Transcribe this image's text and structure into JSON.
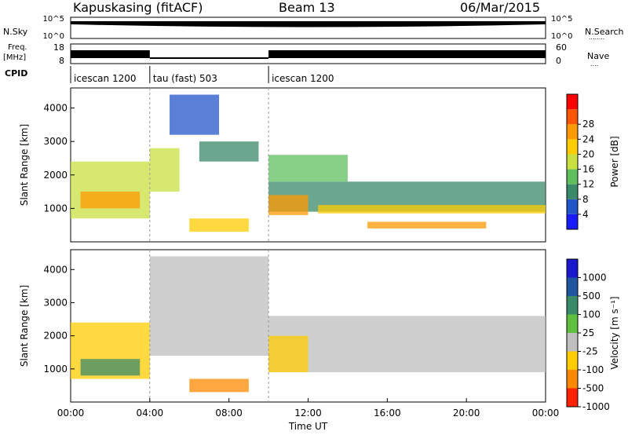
{
  "header": {
    "station": "Kapuskasing (fitACF)",
    "beam": "Beam 13",
    "date": "06/Mar/2015"
  },
  "strip_labels": {
    "nsky": "N.Sky",
    "nsky_ticks": [
      "10^5",
      "10^0"
    ],
    "nsearch": "N.Search",
    "freq": "Freq.",
    "freq_unit": "[MHz]",
    "freq_ticks": [
      "18",
      "8"
    ],
    "nave": "Nave",
    "nave_ticks": [
      "60",
      "0"
    ],
    "cpid": "CPID",
    "dots": "........"
  },
  "cpid_segments": [
    {
      "label": "icescan 1200",
      "start": 0,
      "end": 4
    },
    {
      "label": "tau (fast) 503",
      "start": 4,
      "end": 10
    },
    {
      "label": "icescan 1200",
      "start": 10,
      "end": 24
    }
  ],
  "panels": {
    "ylabel": "Slant Range [km]",
    "yticks": [
      "1000",
      "2000",
      "3000",
      "4000"
    ],
    "xticks": [
      "00:00",
      "04:00",
      "08:00",
      "12:00",
      "16:00",
      "20:00",
      "00:00"
    ],
    "xlabel": "Time UT"
  },
  "power_scale": {
    "label": "Power [dB]",
    "ticks": [
      "4",
      "8",
      "12",
      "16",
      "20",
      "24",
      "28"
    ],
    "colors": [
      "#1a1aff",
      "#2255c8",
      "#3a8a6a",
      "#5fbf5f",
      "#c8e040",
      "#ffcc00",
      "#ff9900",
      "#ff5500",
      "#ff0000"
    ]
  },
  "velocity_scale": {
    "label": "Velocity [m s⁻¹]",
    "ticks": [
      "1000",
      "500",
      "100",
      "25",
      "-25",
      "-100",
      "-500",
      "-1000"
    ],
    "colors": [
      "#1a1acc",
      "#2255a0",
      "#3a8a6a",
      "#5fc040",
      "#bfbfbf",
      "#ffcc00",
      "#ff8800",
      "#ff2200"
    ]
  },
  "chart_data": {
    "type": "heatmap",
    "x_unit": "hours UT",
    "xlim": [
      0,
      24
    ],
    "ylim": [
      0,
      4600
    ],
    "power_regions": [
      {
        "t0": 0.0,
        "t1": 4.0,
        "r0": 700,
        "r1": 2400,
        "val": 18
      },
      {
        "t0": 0.5,
        "t1": 3.5,
        "r0": 1000,
        "r1": 1500,
        "val": 26
      },
      {
        "t0": 4.0,
        "t1": 5.5,
        "r0": 1500,
        "r1": 2800,
        "val": 16
      },
      {
        "t0": 5.0,
        "t1": 7.5,
        "r0": 3200,
        "r1": 4400,
        "val": 6
      },
      {
        "t0": 6.5,
        "t1": 9.5,
        "r0": 2400,
        "r1": 3000,
        "val": 8
      },
      {
        "t0": 6.0,
        "t1": 9.0,
        "r0": 300,
        "r1": 700,
        "val": 22
      },
      {
        "t0": 10.0,
        "t1": 24.0,
        "r0": 900,
        "r1": 1800,
        "val": 8
      },
      {
        "t0": 10.0,
        "t1": 14.0,
        "r0": 1800,
        "r1": 2600,
        "val": 12
      },
      {
        "t0": 10.0,
        "t1": 12.0,
        "r0": 800,
        "r1": 1400,
        "val": 24
      },
      {
        "t0": 12.5,
        "t1": 24.0,
        "r0": 850,
        "r1": 1100,
        "val": 20
      },
      {
        "t0": 15.0,
        "t1": 21.0,
        "r0": 400,
        "r1": 600,
        "val": 26
      }
    ],
    "velocity_regions": [
      {
        "t0": 0.0,
        "t1": 4.0,
        "r0": 700,
        "r1": 2400,
        "val": -100
      },
      {
        "t0": 0.5,
        "t1": 3.5,
        "r0": 800,
        "r1": 1300,
        "val": 100
      },
      {
        "t0": 4.0,
        "t1": 10.0,
        "r0": 1400,
        "r1": 4400,
        "val": 0
      },
      {
        "t0": 6.0,
        "t1": 9.0,
        "r0": 300,
        "r1": 700,
        "val": -500
      },
      {
        "t0": 10.0,
        "t1": 24.0,
        "r0": 900,
        "r1": 2600,
        "val": 0
      },
      {
        "t0": 10.0,
        "t1": 12.0,
        "r0": 900,
        "r1": 2000,
        "val": -100
      }
    ]
  }
}
